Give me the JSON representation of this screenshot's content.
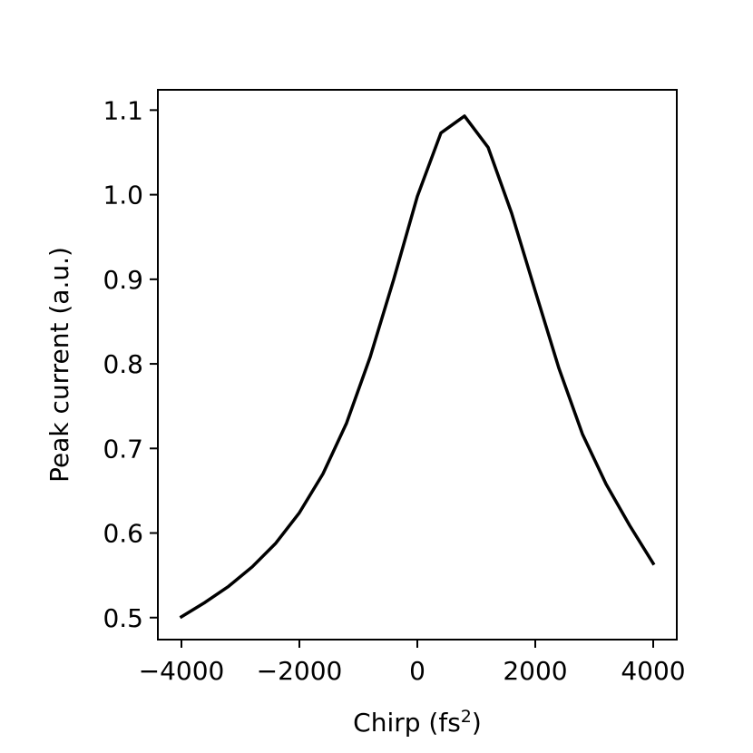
{
  "chart_data": {
    "type": "line",
    "title": "",
    "xlabel": "Chirp (fs",
    "xlabel_superscript": "2",
    "xlabel_suffix": ")",
    "ylabel": "Peak current (a.u.)",
    "xlim": [
      -4400,
      4400
    ],
    "ylim": [
      0.474,
      1.124
    ],
    "grid": false,
    "line_color": "#000000",
    "x_ticks": [
      -4000,
      -2000,
      0,
      2000,
      4000
    ],
    "x_tick_labels": [
      "−4000",
      "−2000",
      "0",
      "2000",
      "4000"
    ],
    "y_ticks": [
      0.5,
      0.6,
      0.7,
      0.8,
      0.9,
      1.0,
      1.1
    ],
    "y_tick_labels": [
      "0.5",
      "0.6",
      "0.7",
      "0.8",
      "0.9",
      "1.0",
      "1.1"
    ],
    "series": [
      {
        "x": [
          -4000,
          -3600,
          -3200,
          -2800,
          -2400,
          -2000,
          -1600,
          -1200,
          -800,
          -400,
          0,
          400,
          800,
          1200,
          1600,
          2000,
          2400,
          2800,
          3200,
          3600,
          4000
        ],
        "y": [
          0.501,
          0.518,
          0.537,
          0.56,
          0.588,
          0.624,
          0.67,
          0.73,
          0.808,
          0.9,
          0.998,
          1.073,
          1.093,
          1.056,
          0.978,
          0.886,
          0.795,
          0.717,
          0.658,
          0.609,
          0.564
        ]
      }
    ]
  }
}
